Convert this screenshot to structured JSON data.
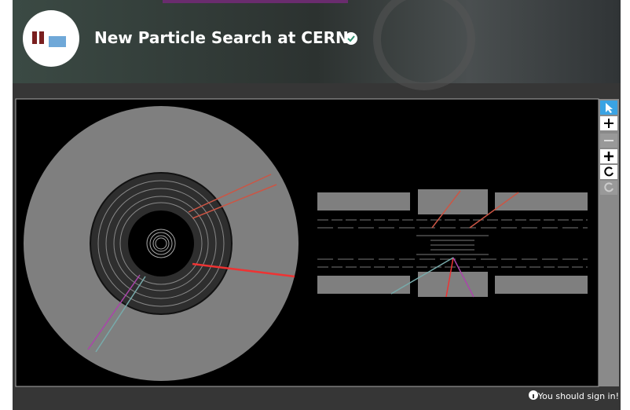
{
  "header": {
    "title": "New Particle Search at CERN"
  },
  "footer": {
    "notice": "You should sign in!"
  }
}
